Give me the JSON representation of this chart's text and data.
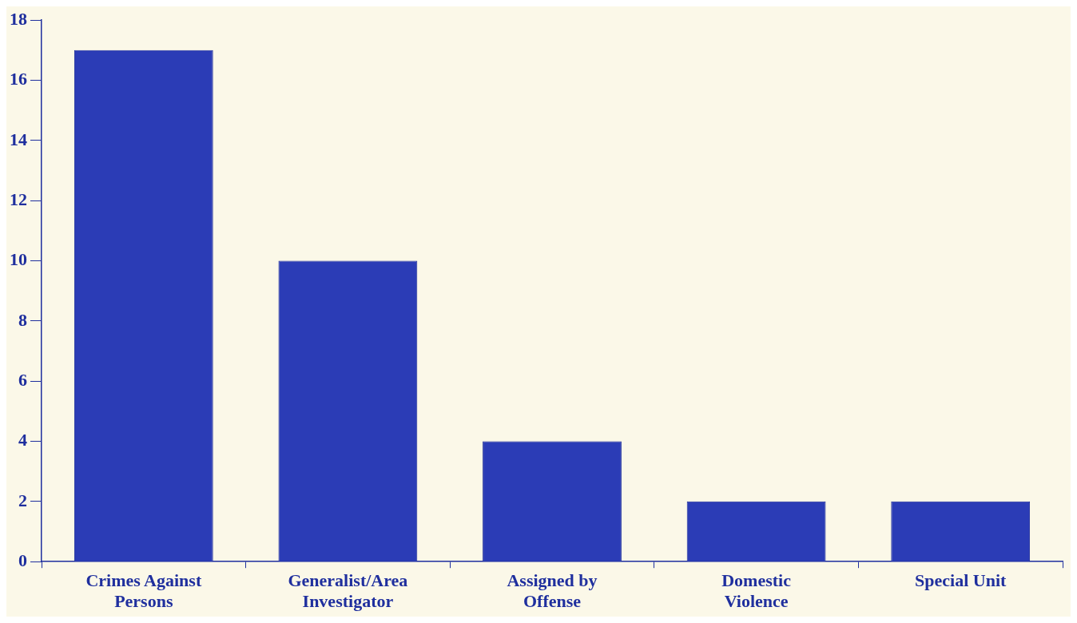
{
  "chart_data": {
    "type": "bar",
    "categories": [
      "Crimes Against Persons",
      "Generalist/Area Investigator",
      "Assigned by Offense",
      "Domestic Violence",
      "Special Unit"
    ],
    "values": [
      17,
      10,
      4,
      2,
      2
    ],
    "color": "#2b3cb6",
    "ylim": [
      0,
      18
    ],
    "yticks": [
      0,
      2,
      4,
      6,
      8,
      10,
      12,
      14,
      16,
      18
    ],
    "grid": false,
    "legend": false
  }
}
